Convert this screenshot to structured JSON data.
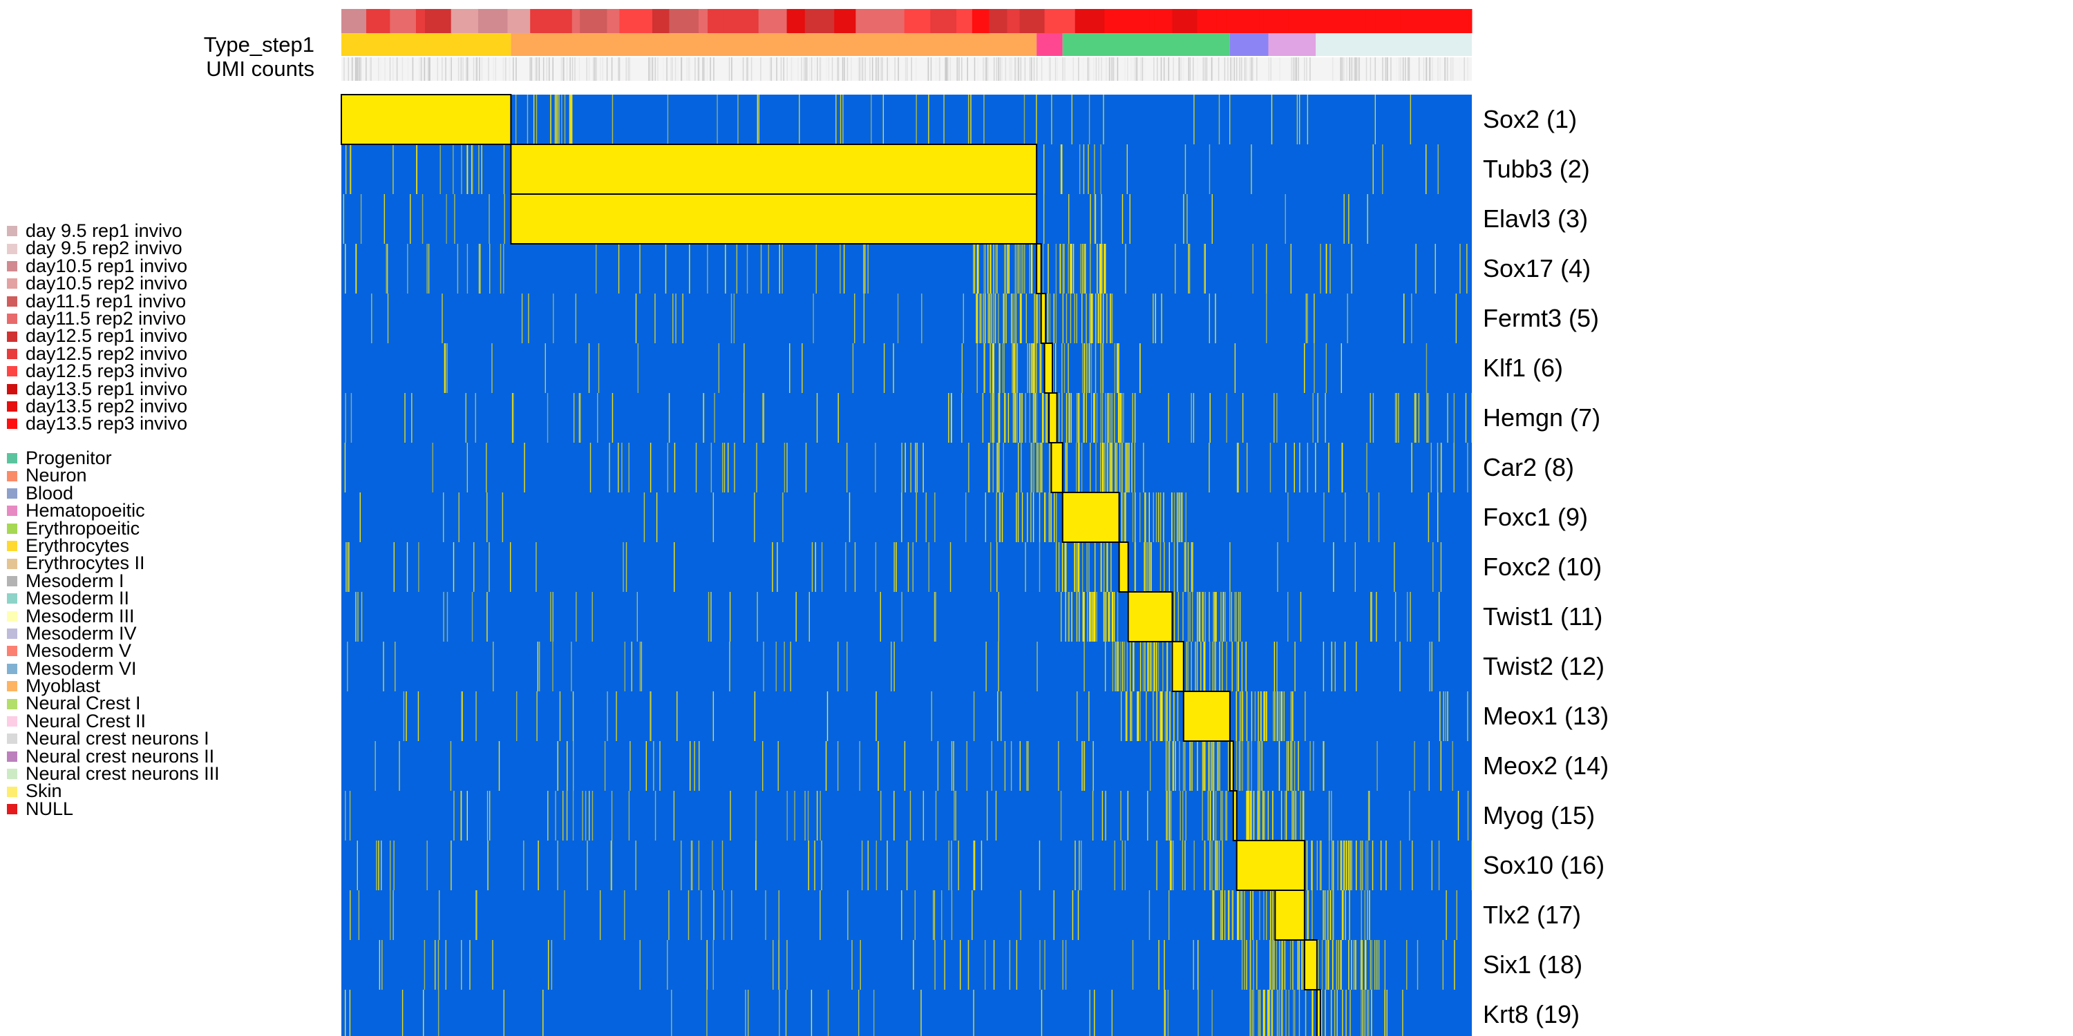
{
  "chart_data": {
    "type": "heatmap",
    "annotation_tracks": [
      {
        "label": "Type_step1"
      },
      {
        "label": "UMI counts"
      }
    ],
    "genes": [
      "Sox2 (1)",
      "Tubb3 (2)",
      "Elavl3 (3)",
      "Sox17 (4)",
      "Fermt3 (5)",
      "Klf1 (6)",
      "Hemgn (7)",
      "Car2 (8)",
      "Foxc1 (9)",
      "Foxc2 (10)",
      "Twist1 (11)",
      "Twist2 (12)",
      "Meox1 (13)",
      "Meox2 (14)",
      "Myog (15)",
      "Sox10 (16)",
      "Tlx2 (17)",
      "Six1 (18)",
      "Krt8 (19)"
    ],
    "cell_axis_range": [
      0,
      1000
    ],
    "low_color": "#0663E0",
    "high_color": "#FFE900",
    "type_blocks": [
      {
        "start": 0,
        "end": 150,
        "color": "#FFD31A"
      },
      {
        "start": 150,
        "end": 615,
        "color": "#FFA856"
      },
      {
        "start": 615,
        "end": 638,
        "color": "#FF4791"
      },
      {
        "start": 638,
        "end": 786,
        "color": "#52D080"
      },
      {
        "start": 786,
        "end": 820,
        "color": "#8C84F4"
      },
      {
        "start": 820,
        "end": 862,
        "color": "#E0A3E3"
      },
      {
        "start": 862,
        "end": 1000,
        "color": "#E0EFEF"
      }
    ],
    "gene_blocks": [
      {
        "gene": 0,
        "start": 0,
        "end": 150
      },
      {
        "gene": 1,
        "start": 150,
        "end": 615
      },
      {
        "gene": 2,
        "start": 150,
        "end": 615
      },
      {
        "gene": 3,
        "start": 615,
        "end": 619
      },
      {
        "gene": 4,
        "start": 619,
        "end": 623
      },
      {
        "gene": 5,
        "start": 622,
        "end": 629
      },
      {
        "gene": 6,
        "start": 626,
        "end": 633
      },
      {
        "gene": 7,
        "start": 628,
        "end": 638
      },
      {
        "gene": 8,
        "start": 638,
        "end": 688
      },
      {
        "gene": 9,
        "start": 688,
        "end": 696
      },
      {
        "gene": 10,
        "start": 696,
        "end": 735
      },
      {
        "gene": 11,
        "start": 735,
        "end": 745
      },
      {
        "gene": 12,
        "start": 745,
        "end": 786
      },
      {
        "gene": 13,
        "start": 786,
        "end": 789
      },
      {
        "gene": 14,
        "start": 789,
        "end": 792
      },
      {
        "gene": 15,
        "start": 792,
        "end": 852
      },
      {
        "gene": 16,
        "start": 826,
        "end": 852
      },
      {
        "gene": 17,
        "start": 852,
        "end": 863
      },
      {
        "gene": 18,
        "start": 863,
        "end": 866
      }
    ],
    "legend_samples": [
      {
        "label": "day 9.5 rep1 invivo",
        "color": "#D5B3B6"
      },
      {
        "label": "day 9.5 rep2 invivo",
        "color": "#E8CCCD"
      },
      {
        "label": "day10.5 rep1 invivo",
        "color": "#D08A90"
      },
      {
        "label": "day10.5 rep2 invivo",
        "color": "#E3A1A1"
      },
      {
        "label": "day11.5 rep1 invivo",
        "color": "#D05C5C"
      },
      {
        "label": "day11.5 rep2 invivo",
        "color": "#E86A6A"
      },
      {
        "label": "day12.5 rep1 invivo",
        "color": "#D13232"
      },
      {
        "label": "day12.5 rep2 invivo",
        "color": "#E83B3B"
      },
      {
        "label": "day12.5 rep3 invivo",
        "color": "#FF4444"
      },
      {
        "label": "day13.5 rep1 invivo",
        "color": "#D00F0F"
      },
      {
        "label": "day13.5 rep2 invivo",
        "color": "#E60E0E"
      },
      {
        "label": "day13.5 rep3 invivo",
        "color": "#FF0F0F"
      }
    ],
    "legend_types": [
      {
        "label": "Progenitor",
        "color": "#5BC49F"
      },
      {
        "label": "Neuron",
        "color": "#FA8B68"
      },
      {
        "label": "Blood",
        "color": "#8DA0CB"
      },
      {
        "label": "Hematopoeitic",
        "color": "#E78AC3"
      },
      {
        "label": "Erythropoeitic",
        "color": "#A6D854"
      },
      {
        "label": "Erythrocytes",
        "color": "#FFD92F"
      },
      {
        "label": "Erythrocytes II",
        "color": "#E5C494"
      },
      {
        "label": "Mesoderm I",
        "color": "#B3B3B3"
      },
      {
        "label": "Mesoderm II",
        "color": "#8DD3C7"
      },
      {
        "label": "Mesoderm III",
        "color": "#FFFFB3"
      },
      {
        "label": "Mesoderm IV",
        "color": "#BEBADA"
      },
      {
        "label": "Mesoderm V",
        "color": "#FB8072"
      },
      {
        "label": "Mesoderm VI",
        "color": "#80B1D3"
      },
      {
        "label": "Myoblast",
        "color": "#FDB462"
      },
      {
        "label": "Neural Crest I",
        "color": "#B3DE69"
      },
      {
        "label": "Neural Crest II",
        "color": "#FCCDE5"
      },
      {
        "label": "Neural crest neurons I",
        "color": "#D9D9D9"
      },
      {
        "label": "Neural crest neurons II",
        "color": "#BC80BD"
      },
      {
        "label": "Neural crest neurons III",
        "color": "#CCEBC5"
      },
      {
        "label": "Skin",
        "color": "#FFED6F"
      },
      {
        "label": "NULL",
        "color": "#E41A1C"
      }
    ]
  }
}
